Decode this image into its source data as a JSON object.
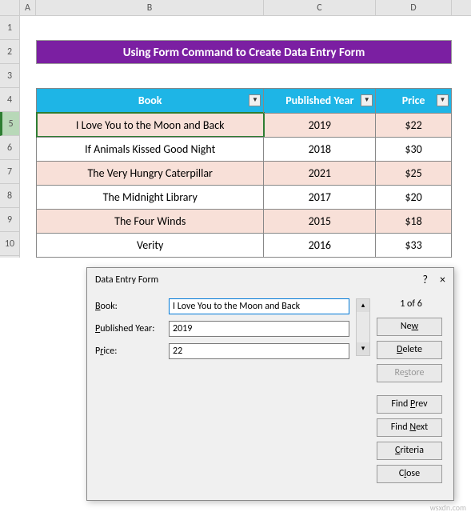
{
  "columns": {
    "A": "A",
    "B": "B",
    "C": "C",
    "D": "D"
  },
  "rows": [
    "1",
    "2",
    "3",
    "4",
    "5",
    "6",
    "7",
    "8",
    "9",
    "10"
  ],
  "title": "Using Form Command to Create Data Entry Form",
  "headers": {
    "book": "Book",
    "year": "Published Year",
    "price": "Price"
  },
  "table": {
    "rows": [
      {
        "book": "I Love You to the Moon and Back",
        "year": "2019",
        "price": "$22",
        "alt": true,
        "sel": true
      },
      {
        "book": "If Animals Kissed Good Night",
        "year": "2018",
        "price": "$30",
        "alt": false
      },
      {
        "book": "The Very Hungry Caterpillar",
        "year": "2021",
        "price": "$25",
        "alt": true
      },
      {
        "book": "The Midnight Library",
        "year": "2017",
        "price": "$20",
        "alt": false
      },
      {
        "book": "The Four Winds",
        "year": "2015",
        "price": "$18",
        "alt": true
      },
      {
        "book": "Verity",
        "year": "2016",
        "price": "$33",
        "alt": false
      }
    ]
  },
  "dialog": {
    "title": "Data Entry Form",
    "help": "?",
    "close_x": "×",
    "counter": "1 of 6",
    "labels": {
      "book": "Book:",
      "year": "Published Year:",
      "price": "Price:"
    },
    "label_accel": {
      "book": "B",
      "year": "P",
      "price": "r"
    },
    "values": {
      "book": "I Love You to the Moon and Back",
      "year": "2019",
      "price": "22"
    },
    "buttons": {
      "new": "New",
      "delete": "Delete",
      "restore": "Restore",
      "findprev": "Find Prev",
      "findnext": "Find Next",
      "criteria": "Criteria",
      "close": "Close"
    }
  },
  "colors": {
    "title_bg": "#7b1fa2",
    "header_bg": "#1eb5e6",
    "alt_row": "#f8e0d8",
    "sel_border": "#2e7d32"
  },
  "watermark": "wsxdn.com"
}
